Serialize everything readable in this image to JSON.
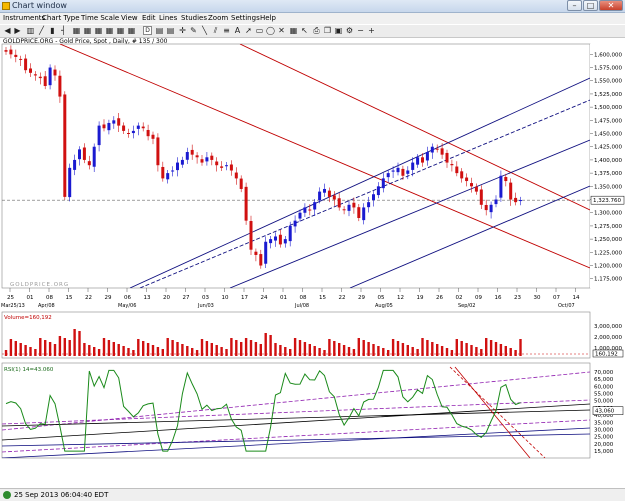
{
  "window": {
    "title": "Chart window"
  },
  "menu": [
    "Instruments",
    "Chart Type",
    "Time Scale",
    "View",
    "Edit",
    "Lines",
    "Studies",
    "Zoom",
    "Settings",
    "Help"
  ],
  "toolbar_icons": [
    "scroll-left-icon",
    "scroll-right-icon",
    "bar-chart-icon",
    "line-chart-icon",
    "candlestick-icon",
    "ohlc-icon",
    "daily-icon",
    "weekly-icon",
    "monthly-icon",
    "crosshair-icon",
    "pencil-icon",
    "line-tool-icon",
    "channel-tool-icon",
    "fib-tool-icon",
    "text-tool-icon",
    "arrow-tool-icon",
    "rectangle-tool-icon",
    "ellipse-tool-icon",
    "delete-tool-icon",
    "zoom-in-icon",
    "zoom-out-icon",
    "zoom-fit-icon",
    "zoom-reset-icon",
    "print-icon",
    "copy-icon",
    "save-icon",
    "settings-icon"
  ],
  "toolbar_selected_label": "D",
  "chart_info": "GOLDPRICE.ORG - Gold Price, Spot , Daily, # 135 / 300",
  "watermark": "GOLDPRICE.ORG",
  "status": {
    "datetime": "25 Sep 2013 06:04:40 EDT"
  },
  "price_panel": {
    "y_ticks": [
      "1,600,000",
      "1,575,000",
      "1,550,000",
      "1,525,000",
      "1,500,000",
      "1,475,000",
      "1,450,000",
      "1,425,000",
      "1,400,000",
      "1,375,000",
      "1,350,000",
      "1,325,000",
      "1,300,000",
      "1,275,000",
      "1,250,000",
      "1,225,000",
      "1,200,000",
      "1,175,000"
    ],
    "last_price": "1,323.760",
    "x_ticks": [
      "25",
      "01",
      "08",
      "15",
      "22",
      "29",
      "06",
      "13",
      "20",
      "27",
      "03",
      "10",
      "17",
      "24",
      "01",
      "08",
      "15",
      "22",
      "29",
      "05",
      "12",
      "19",
      "26",
      "02",
      "09",
      "16",
      "23",
      "30",
      "07",
      "14"
    ],
    "x_sublabels": [
      "Mar25/13",
      "Apr/08",
      "May/06",
      "Jun/03",
      "Jul/08",
      "Aug/05",
      "Sep/02",
      "Oct/07"
    ]
  },
  "volume_panel": {
    "label": "Volume=160,192",
    "y_ticks": [
      "3,000,000",
      "2,000,000",
      "1,000,000"
    ],
    "last_value": "160,192"
  },
  "rsi_panel": {
    "label": "RSI(1) 14=43.060",
    "y_ticks": [
      "70,000",
      "65,000",
      "60,000",
      "55,000",
      "50,000",
      "45,000",
      "40,000",
      "35,000",
      "30,000",
      "25,000",
      "20,000",
      "15,000"
    ],
    "last_value": "43,060"
  },
  "colors": {
    "up": "#1a1ad0",
    "down": "#d01010",
    "channel_blue": "#101080",
    "channel_red": "#c00000",
    "rsi_line": "#1a8a1a",
    "rsi_channel": "#9020b0",
    "volume": "#d01010"
  },
  "chart_data": {
    "type": "candlestick",
    "title": "GOLDPRICE.ORG - Gold Price, Spot , Daily",
    "series": [
      {
        "name": "Gold Price, Spot",
        "close_approx": [
          1605,
          1600,
          1595,
          1590,
          1570,
          1565,
          1560,
          1555,
          1540,
          1575,
          1560,
          1520,
          1330,
          1385,
          1400,
          1420,
          1400,
          1390,
          1425,
          1465,
          1460,
          1470,
          1475,
          1465,
          1455,
          1450,
          1455,
          1465,
          1460,
          1445,
          1440,
          1390,
          1365,
          1375,
          1380,
          1395,
          1400,
          1415,
          1410,
          1405,
          1395,
          1405,
          1400,
          1390,
          1385,
          1390,
          1380,
          1365,
          1345,
          1285,
          1230,
          1220,
          1200,
          1245,
          1250,
          1255,
          1240,
          1250,
          1275,
          1285,
          1300,
          1310,
          1305,
          1320,
          1340,
          1345,
          1330,
          1325,
          1310,
          1305,
          1315,
          1310,
          1290,
          1310,
          1320,
          1335,
          1350,
          1365,
          1375,
          1380,
          1385,
          1370,
          1380,
          1395,
          1405,
          1395,
          1415,
          1425,
          1420,
          1410,
          1395,
          1390,
          1375,
          1365,
          1360,
          1350,
          1340,
          1315,
          1305,
          1315,
          1325,
          1370,
          1360,
          1325,
          1320,
          1324
        ]
      }
    ],
    "ylim": [
      1165,
      1612
    ]
  }
}
